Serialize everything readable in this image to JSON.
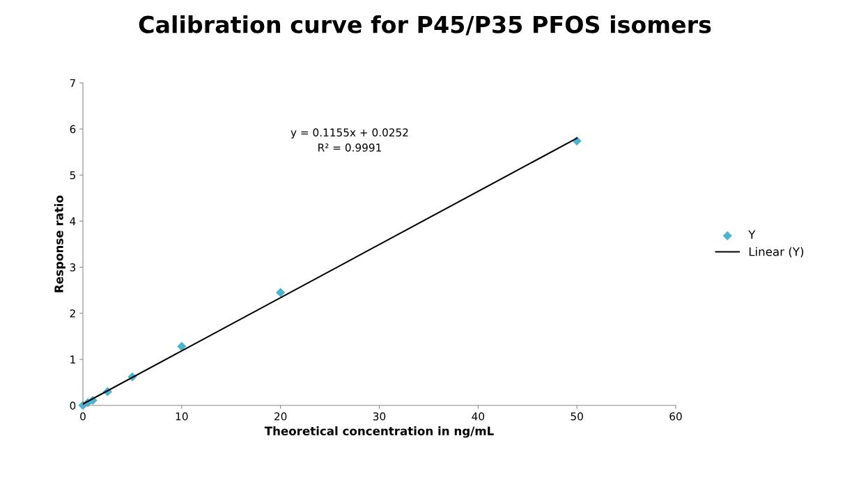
{
  "chart_data": {
    "type": "scatter",
    "title": "Calibration curve for P45/P35 PFOS isomers",
    "xlabel": "Theoretical concentration in ng/mL",
    "ylabel": "Response ratio",
    "annotations": [
      "y = 0.1155x + 0.0252\nR² = 0.9991"
    ],
    "xlim": [
      0,
      60
    ],
    "xticks": [
      0,
      10,
      20,
      30,
      40,
      50,
      60
    ],
    "ylim": [
      0,
      7
    ],
    "yticks": [
      0,
      1,
      2,
      3,
      4,
      5,
      6,
      7
    ],
    "grid": false,
    "legend": "right",
    "series": [
      {
        "name": "Y",
        "color": "#4bb5d0",
        "marker": "diamond",
        "x": [
          0,
          0.5,
          1,
          2.5,
          5,
          10,
          20,
          50
        ],
        "values": [
          0,
          0.06,
          0.11,
          0.3,
          0.62,
          1.28,
          2.45,
          5.74
        ]
      },
      {
        "name": "Linear (Y)",
        "type": "line",
        "color": "#000000",
        "marker": "none",
        "line_style": "solid",
        "x": [
          0,
          50
        ],
        "values": [
          0.03,
          5.8
        ]
      }
    ]
  }
}
